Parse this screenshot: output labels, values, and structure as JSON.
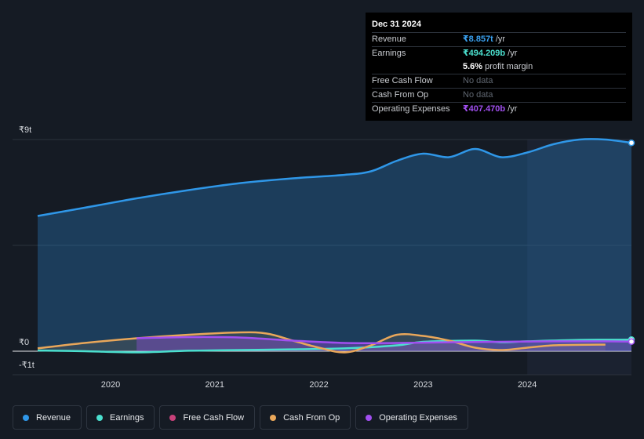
{
  "tooltip": {
    "date": "Dec 31 2024",
    "rows": [
      {
        "label": "Revenue",
        "value": "₹8.857t",
        "unit": "/yr",
        "color": "#3aa1f0"
      },
      {
        "label": "Earnings",
        "value": "₹494.209b",
        "unit": "/yr",
        "color": "#4be0cf"
      },
      {
        "label": "",
        "value": "5.6%",
        "unit": "profit margin",
        "color": "#ffffff"
      },
      {
        "label": "Free Cash Flow",
        "value": "No data",
        "unit": "",
        "color": ""
      },
      {
        "label": "Cash From Op",
        "value": "No data",
        "unit": "",
        "color": ""
      },
      {
        "label": "Operating Expenses",
        "value": "₹407.470b",
        "unit": "/yr",
        "color": "#a14ff0"
      }
    ]
  },
  "legend": [
    {
      "label": "Revenue",
      "color": "#2f97e8"
    },
    {
      "label": "Earnings",
      "color": "#4be0cf"
    },
    {
      "label": "Free Cash Flow",
      "color": "#c8417a"
    },
    {
      "label": "Cash From Op",
      "color": "#e9a75a"
    },
    {
      "label": "Operating Expenses",
      "color": "#a14ff0"
    }
  ],
  "chart_data": {
    "type": "area",
    "y_tick_labels": [
      "₹9t",
      "₹0",
      "-₹1t"
    ],
    "ylim": [
      -1,
      9
    ],
    "y_unit": "trillion INR",
    "x_tick_labels": [
      "2020",
      "2021",
      "2022",
      "2023",
      "2024"
    ],
    "xlim": [
      2019.3,
      2025.0
    ],
    "highlight_start": 2024.0,
    "grid": true,
    "series": [
      {
        "name": "Revenue",
        "color": "#2f97e8",
        "x": [
          2019.3,
          2019.75,
          2020.25,
          2020.75,
          2021.25,
          2021.75,
          2022.25,
          2022.5,
          2022.75,
          2023.0,
          2023.25,
          2023.5,
          2023.75,
          2024.0,
          2024.25,
          2024.5,
          2024.75,
          2025.0
        ],
        "y": [
          5.75,
          6.1,
          6.5,
          6.85,
          7.15,
          7.35,
          7.5,
          7.65,
          8.1,
          8.4,
          8.25,
          8.6,
          8.25,
          8.45,
          8.8,
          9.0,
          9.0,
          8.86
        ]
      },
      {
        "name": "Earnings",
        "color": "#4be0cf",
        "x": [
          2019.3,
          2019.75,
          2020.25,
          2020.75,
          2021.25,
          2021.75,
          2022.25,
          2022.75,
          2023.0,
          2023.5,
          2023.75,
          2024.0,
          2024.5,
          2025.0
        ],
        "y": [
          0.03,
          0.0,
          -0.05,
          0.02,
          0.05,
          0.08,
          0.12,
          0.25,
          0.4,
          0.45,
          0.38,
          0.42,
          0.48,
          0.49
        ]
      },
      {
        "name": "Cash From Op",
        "color": "#e9a75a",
        "x": [
          2019.3,
          2019.75,
          2020.25,
          2020.75,
          2021.25,
          2021.5,
          2021.75,
          2022.0,
          2022.25,
          2022.5,
          2022.75,
          2023.0,
          2023.25,
          2023.5,
          2023.75,
          2024.0,
          2024.25,
          2024.5,
          2024.75
        ],
        "y": [
          0.12,
          0.35,
          0.55,
          0.7,
          0.8,
          0.75,
          0.45,
          0.15,
          -0.05,
          0.25,
          0.7,
          0.65,
          0.45,
          0.15,
          0.05,
          0.15,
          0.25,
          0.27,
          0.28
        ]
      },
      {
        "name": "Operating Expenses",
        "color": "#a14ff0",
        "x": [
          2020.25,
          2020.75,
          2021.25,
          2021.75,
          2022.25,
          2022.75,
          2023.25,
          2023.75,
          2024.25,
          2024.75,
          2025.0
        ],
        "y": [
          0.55,
          0.6,
          0.58,
          0.45,
          0.35,
          0.35,
          0.38,
          0.4,
          0.42,
          0.42,
          0.41
        ]
      }
    ]
  }
}
